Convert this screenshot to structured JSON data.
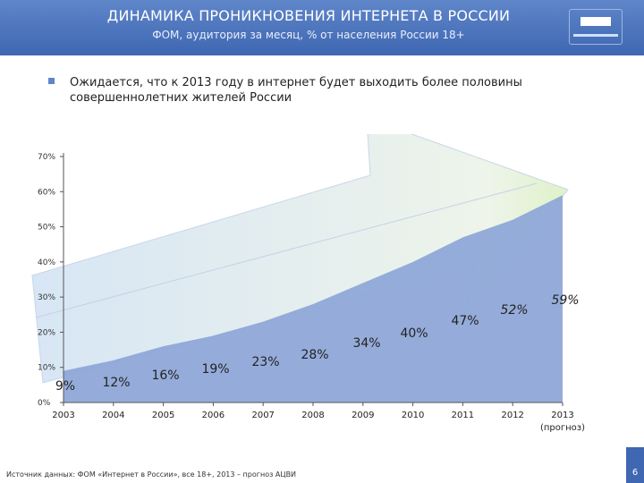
{
  "header": {
    "title": "ДИНАМИКА ПРОНИКНОВЕНИЯ ИНТЕРНЕТА В РОССИИ",
    "subtitle": "ФОМ, аудитория за месяц, % от населения России 18+"
  },
  "bullet": {
    "text": "Ожидается, что к 2013 году в интернет будет выходить более половины совершеннолетних жителей России"
  },
  "chart_data": {
    "type": "area",
    "categories": [
      "2003",
      "2004",
      "2005",
      "2006",
      "2007",
      "2008",
      "2009",
      "2010",
      "2011",
      "2012",
      "2013"
    ],
    "x_sublabels": [
      "",
      "",
      "",
      "",
      "",
      "",
      "",
      "",
      "",
      "",
      "(прогноз)"
    ],
    "values": [
      9,
      12,
      16,
      19,
      23,
      28,
      34,
      40,
      47,
      52,
      59
    ],
    "labels": [
      "9%",
      "12%",
      "16%",
      "19%",
      "23%",
      "28%",
      "34%",
      "40%",
      "47%",
      "52%",
      "59%"
    ],
    "yticks": [
      "0%",
      "10%",
      "20%",
      "30%",
      "40%",
      "50%",
      "60%",
      "70%"
    ],
    "ylim": [
      0,
      70
    ],
    "grid": false,
    "colors": {
      "fill": "#8fa8d8",
      "arrow": "#e4edf7"
    }
  },
  "footer": {
    "source": "Источник данных: ФОМ «Интернет в России», все 18+, 2013 – прогноз АЦВИ",
    "page": "6"
  }
}
